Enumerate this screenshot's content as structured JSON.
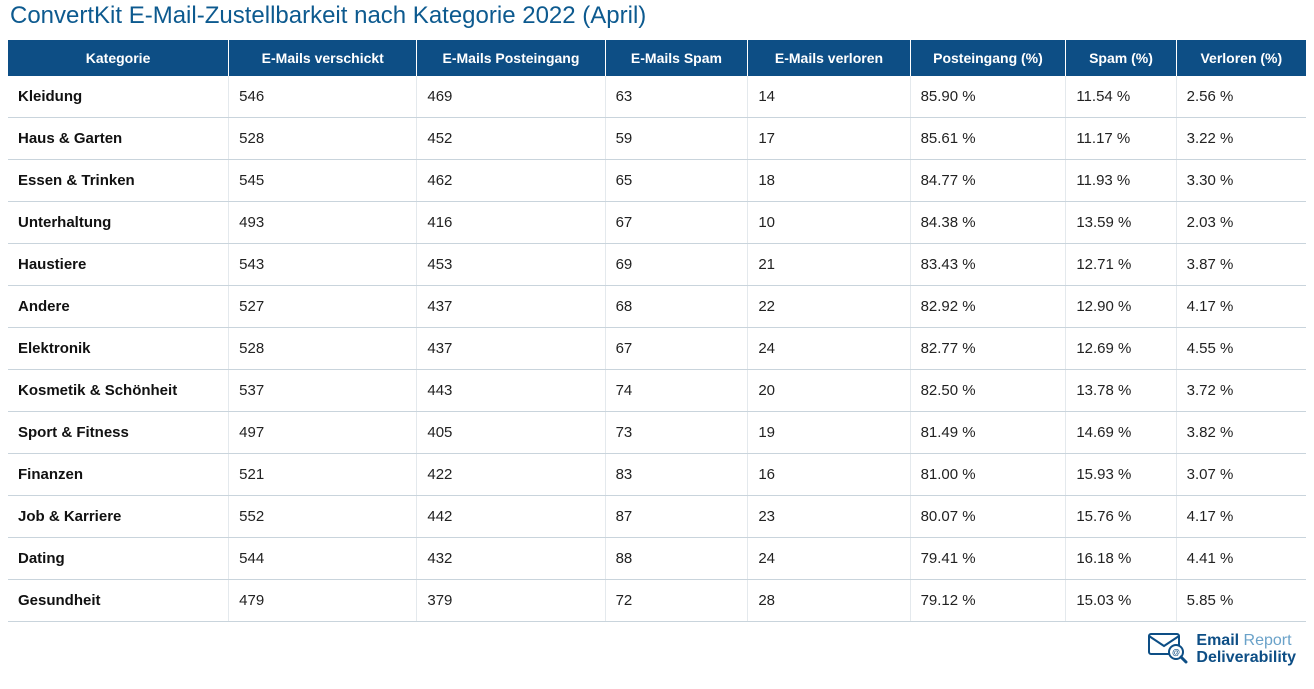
{
  "title": "ConvertKit E-Mail-Zustellbarkeit nach Kategorie 2022 (April)",
  "colors": {
    "header_bg": "#0d4e85",
    "header_text": "#ffffff",
    "title_text": "#0d5a8f",
    "row_border": "#c9d4dc",
    "cell_border": "#e4e9ed",
    "body_text": "#222222",
    "logo_primary": "#0d4e85",
    "logo_secondary": "#6aa2c9"
  },
  "table": {
    "columns": [
      "Kategorie",
      "E-Mails verschickt",
      "E-Mails Posteingang",
      "E-Mails Spam",
      "E-Mails verloren",
      "Posteingang (%)",
      "Spam (%)",
      "Verloren (%)"
    ],
    "rows": [
      {
        "cat": "Kleidung",
        "sent": "546",
        "inbox": "469",
        "spam": "63",
        "lost": "14",
        "inbox_pct": "85.90 %",
        "spam_pct": "11.54 %",
        "lost_pct": "2.56 %"
      },
      {
        "cat": "Haus & Garten",
        "sent": "528",
        "inbox": "452",
        "spam": "59",
        "lost": "17",
        "inbox_pct": "85.61 %",
        "spam_pct": "11.17 %",
        "lost_pct": "3.22 %"
      },
      {
        "cat": "Essen & Trinken",
        "sent": "545",
        "inbox": "462",
        "spam": "65",
        "lost": "18",
        "inbox_pct": "84.77 %",
        "spam_pct": "11.93 %",
        "lost_pct": "3.30 %"
      },
      {
        "cat": "Unterhaltung",
        "sent": "493",
        "inbox": "416",
        "spam": "67",
        "lost": "10",
        "inbox_pct": "84.38 %",
        "spam_pct": "13.59 %",
        "lost_pct": "2.03 %"
      },
      {
        "cat": "Haustiere",
        "sent": "543",
        "inbox": "453",
        "spam": "69",
        "lost": "21",
        "inbox_pct": "83.43 %",
        "spam_pct": "12.71 %",
        "lost_pct": "3.87 %"
      },
      {
        "cat": "Andere",
        "sent": "527",
        "inbox": "437",
        "spam": "68",
        "lost": "22",
        "inbox_pct": "82.92 %",
        "spam_pct": "12.90 %",
        "lost_pct": "4.17 %"
      },
      {
        "cat": "Elektronik",
        "sent": "528",
        "inbox": "437",
        "spam": "67",
        "lost": "24",
        "inbox_pct": "82.77 %",
        "spam_pct": "12.69 %",
        "lost_pct": "4.55 %"
      },
      {
        "cat": "Kosmetik & Schönheit",
        "sent": "537",
        "inbox": "443",
        "spam": "74",
        "lost": "20",
        "inbox_pct": "82.50 %",
        "spam_pct": "13.78 %",
        "lost_pct": "3.72 %"
      },
      {
        "cat": "Sport & Fitness",
        "sent": "497",
        "inbox": "405",
        "spam": "73",
        "lost": "19",
        "inbox_pct": "81.49 %",
        "spam_pct": "14.69 %",
        "lost_pct": "3.82 %"
      },
      {
        "cat": "Finanzen",
        "sent": "521",
        "inbox": "422",
        "spam": "83",
        "lost": "16",
        "inbox_pct": "81.00 %",
        "spam_pct": "15.93 %",
        "lost_pct": "3.07 %"
      },
      {
        "cat": "Job & Karriere",
        "sent": "552",
        "inbox": "442",
        "spam": "87",
        "lost": "23",
        "inbox_pct": "80.07 %",
        "spam_pct": "15.76 %",
        "lost_pct": "4.17 %"
      },
      {
        "cat": "Dating",
        "sent": "544",
        "inbox": "432",
        "spam": "88",
        "lost": "24",
        "inbox_pct": "79.41 %",
        "spam_pct": "16.18 %",
        "lost_pct": "4.41 %"
      },
      {
        "cat": "Gesundheit",
        "sent": "479",
        "inbox": "379",
        "spam": "72",
        "lost": "28",
        "inbox_pct": "79.12 %",
        "spam_pct": "15.03 %",
        "lost_pct": "5.85 %"
      }
    ]
  },
  "logo": {
    "line1a": "Email",
    "line1b": " Report",
    "line2": "Deliverability",
    "icon_name": "envelope-magnify-icon"
  }
}
